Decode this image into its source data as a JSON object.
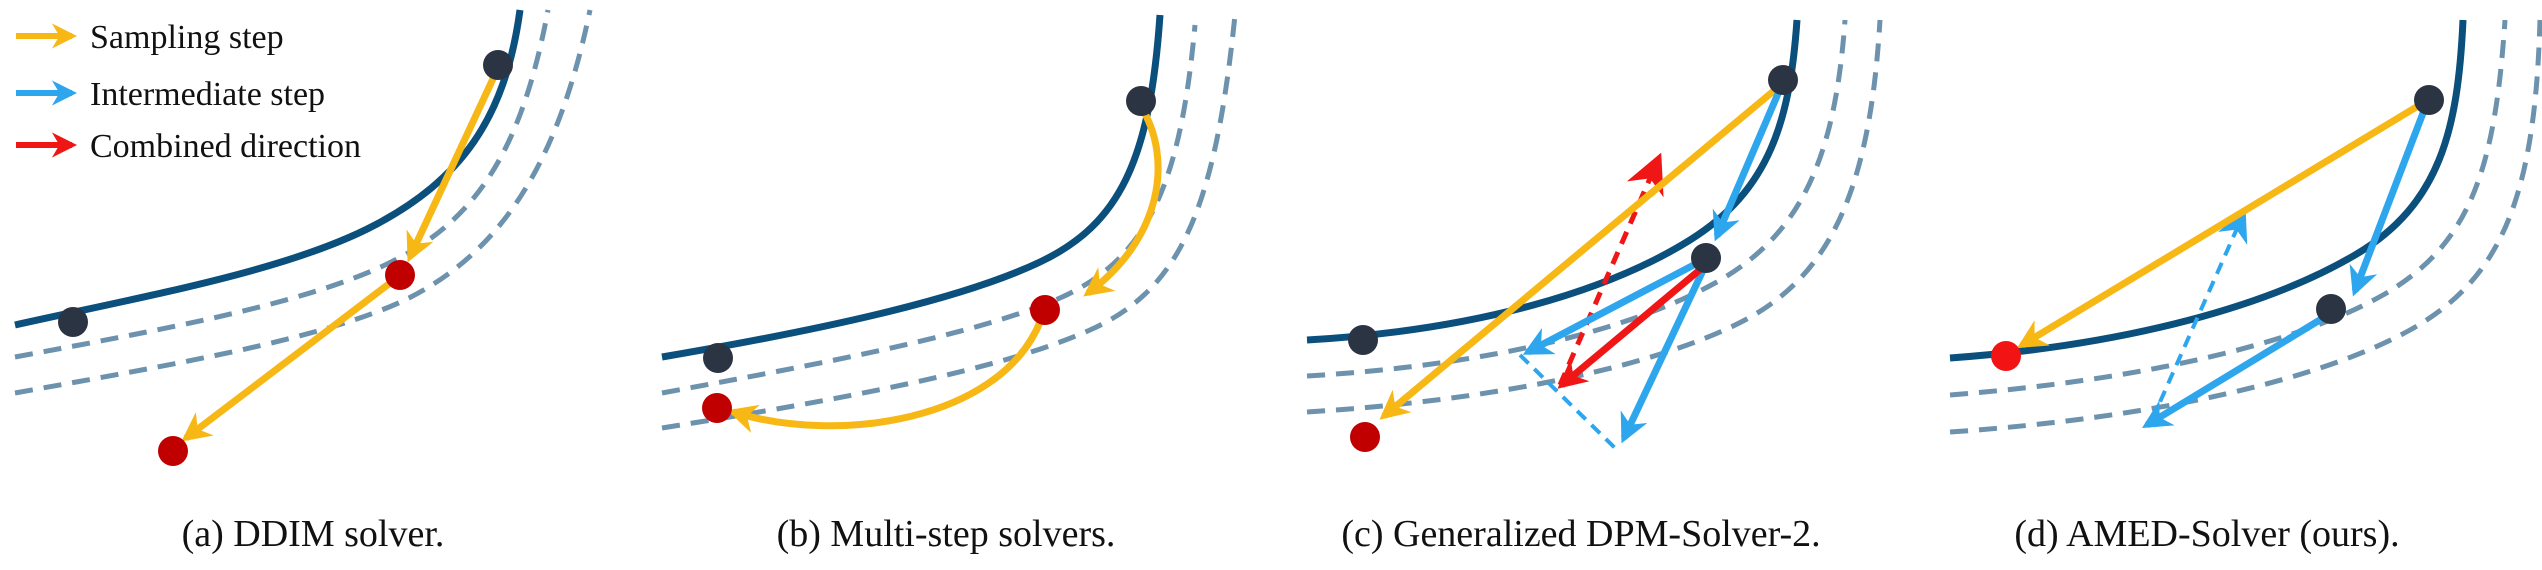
{
  "legend": {
    "sampling": "Sampling step",
    "intermediate": "Intermediate step",
    "combined": "Combined direction"
  },
  "captions": {
    "a": "(a) DDIM solver.",
    "b": "(b) Multi-step solvers.",
    "c": "(c) Generalized DPM-Solver-2.",
    "d": "(d) AMED-Solver (ours)."
  },
  "colors": {
    "trajectory": "#0B4F7C",
    "dashed": "#6D92AD",
    "sampling": "#F7B815",
    "intermediate": "#2EA6EE",
    "combined": "#F01616",
    "point_dark": "#2B3442",
    "point_red": "#C00000",
    "point_bright_red": "#F21414"
  }
}
